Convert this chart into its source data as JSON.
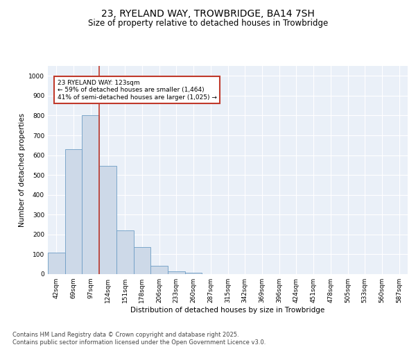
{
  "title1": "23, RYELAND WAY, TROWBRIDGE, BA14 7SH",
  "title2": "Size of property relative to detached houses in Trowbridge",
  "xlabel": "Distribution of detached houses by size in Trowbridge",
  "ylabel": "Number of detached properties",
  "categories": [
    "42sqm",
    "69sqm",
    "97sqm",
    "124sqm",
    "151sqm",
    "178sqm",
    "206sqm",
    "233sqm",
    "260sqm",
    "287sqm",
    "315sqm",
    "342sqm",
    "369sqm",
    "396sqm",
    "424sqm",
    "451sqm",
    "478sqm",
    "505sqm",
    "533sqm",
    "560sqm",
    "587sqm"
  ],
  "values": [
    110,
    630,
    800,
    545,
    220,
    135,
    42,
    15,
    8,
    0,
    0,
    0,
    0,
    0,
    0,
    0,
    0,
    0,
    0,
    0,
    0
  ],
  "bar_color": "#cdd9e8",
  "bar_edgecolor": "#6d9dc5",
  "vline_color": "#c0392b",
  "annotation_text": "23 RYELAND WAY: 123sqm\n← 59% of detached houses are smaller (1,464)\n41% of semi-detached houses are larger (1,025) →",
  "annotation_box_color": "#c0392b",
  "ylim": [
    0,
    1050
  ],
  "yticks": [
    0,
    100,
    200,
    300,
    400,
    500,
    600,
    700,
    800,
    900,
    1000
  ],
  "background_color": "#eaf0f8",
  "grid_color": "#ffffff",
  "footer_text": "Contains HM Land Registry data © Crown copyright and database right 2025.\nContains public sector information licensed under the Open Government Licence v3.0.",
  "title1_fontsize": 10,
  "title2_fontsize": 8.5,
  "xlabel_fontsize": 7.5,
  "ylabel_fontsize": 7.5,
  "tick_fontsize": 6.5,
  "footer_fontsize": 6.0,
  "vline_position": 2.5
}
